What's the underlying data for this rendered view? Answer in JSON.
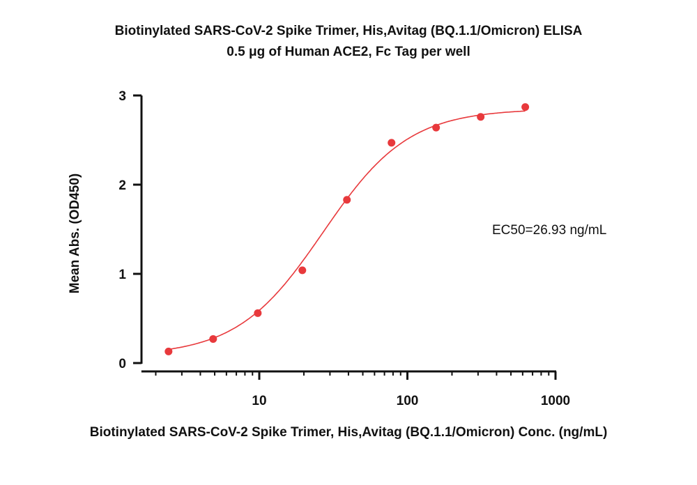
{
  "chart_data": {
    "type": "scatter",
    "title": "Biotinylated SARS-CoV-2 Spike Trimer, His,Avitag (BQ.1.1/Omicron) ELISA",
    "subtitle": "0.5 μg of Human ACE2, Fc Tag per well",
    "xlabel": "Biotinylated SARS-CoV-2 Spike Trimer, His,Avitag (BQ.1.1/Omicron) Conc. (ng/mL)",
    "ylabel": "Mean Abs. (OD450)",
    "x_scale": "log",
    "xlim": [
      1.6,
      1000
    ],
    "ylim": [
      0,
      3
    ],
    "x_ticks": [
      10,
      100,
      1000
    ],
    "x_tick_labels": [
      "10",
      "100",
      "1000"
    ],
    "y_ticks": [
      0,
      1,
      2,
      3
    ],
    "y_tick_labels": [
      "0",
      "1",
      "2",
      "3"
    ],
    "grid": false,
    "color": "#e8393c",
    "annotation": "EC50=26.93 ng/mL",
    "x": [
      2.44,
      4.88,
      9.77,
      19.53,
      39.06,
      78.13,
      156.25,
      312.5,
      625
    ],
    "y": [
      0.13,
      0.27,
      0.56,
      1.04,
      1.83,
      2.47,
      2.64,
      2.76,
      2.87
    ],
    "fit": {
      "model": "4PL",
      "bottom": 0.08,
      "top": 2.85,
      "ec50": 26.93,
      "hill": 1.5
    }
  }
}
